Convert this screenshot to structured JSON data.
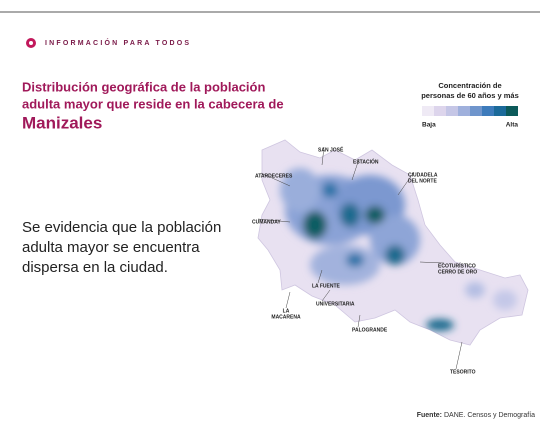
{
  "header": "INFORMACIÓN PARA TODOS",
  "title": [
    "Distribución geográfica de la población",
    "adulta mayor que reside en la cabecera de",
    "Manizales"
  ],
  "body": [
    "Se evidencia que la población",
    "adulta mayor se encuentra",
    "dispersa en la ciudad."
  ],
  "legend": {
    "title": [
      "Concentración de",
      "personas de 60 años y más"
    ],
    "low": "Baja",
    "high": "Alta"
  },
  "labels": [
    [
      "SAN JOSÉ"
    ],
    [
      "ESTACIÓN"
    ],
    [
      "ATARDECERES"
    ],
    [
      "CIUDADELA",
      "DEL NORTE"
    ],
    [
      "CUMANDAY"
    ],
    [
      "ECOTURÍSTICO",
      "CERRO DE ORO"
    ],
    [
      "LA FUENTE"
    ],
    [
      "UNIVERSITARIA"
    ],
    [
      "LA",
      "MACARENA"
    ],
    [
      "PALOGRANDE"
    ],
    [
      "TESORITO"
    ]
  ],
  "source": {
    "label": "Fuente:",
    "text": "DANE. Censos y Demografía"
  }
}
